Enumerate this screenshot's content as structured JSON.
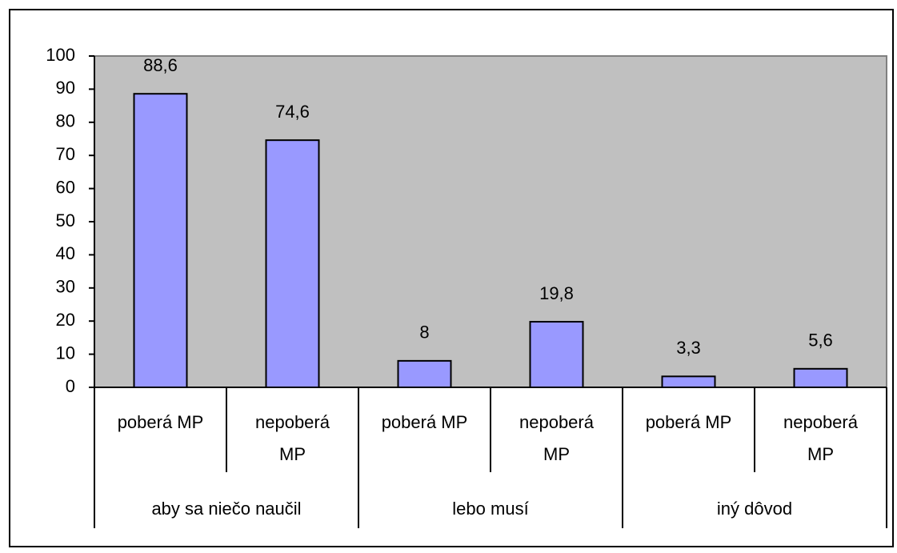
{
  "chart_data": {
    "type": "bar",
    "categories": [
      "poberá MP",
      "nepoberá MP",
      "poberá MP",
      "nepoberá MP",
      "poberá MP",
      "nepoberá MP"
    ],
    "groups": [
      "aby sa niečo naučil",
      "lebo musí",
      "iný dôvod"
    ],
    "values": [
      88.6,
      74.6,
      8,
      19.8,
      3.3,
      5.6
    ],
    "value_labels": [
      "88,6",
      "74,6",
      "8",
      "19,8",
      "3,3",
      "5,6"
    ],
    "color": "#9999ff",
    "plot_background": "#c0c0c0",
    "ylim": [
      0,
      100
    ],
    "yticks": [
      0,
      10,
      20,
      30,
      40,
      50,
      60,
      70,
      80,
      90,
      100
    ]
  }
}
